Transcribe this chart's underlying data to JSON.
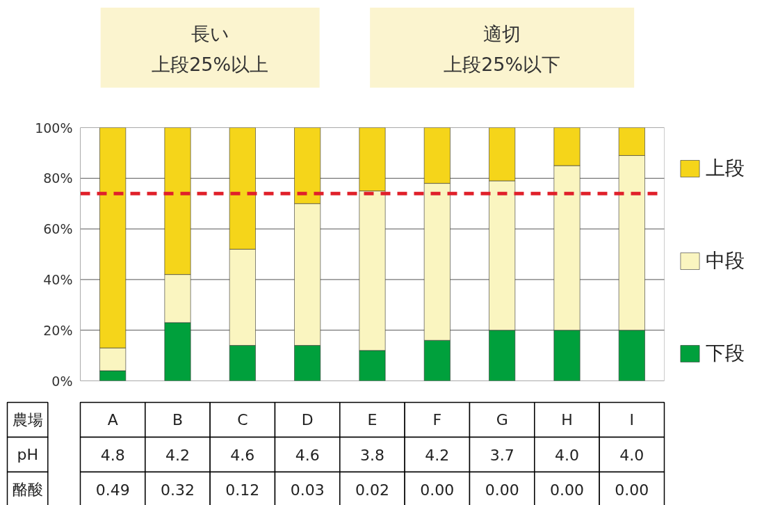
{
  "chart_data": {
    "type": "bar",
    "stacked": true,
    "categories": [
      "A",
      "B",
      "C",
      "D",
      "E",
      "F",
      "G",
      "H",
      "I"
    ],
    "series": [
      {
        "name": "下段",
        "color": "#00a03c",
        "values": [
          4,
          23,
          14,
          14,
          12,
          16,
          20,
          20,
          20
        ]
      },
      {
        "name": "中段",
        "color": "#faf5c0",
        "values": [
          9,
          19,
          38,
          56,
          63,
          62,
          59,
          65,
          69
        ]
      },
      {
        "name": "上段",
        "color": "#f5d51a",
        "values": [
          87,
          58,
          48,
          30,
          25,
          22,
          21,
          15,
          11
        ]
      }
    ],
    "ylim": [
      0,
      100
    ],
    "yticks": [
      {
        "value": 0,
        "label": "0%"
      },
      {
        "value": 20,
        "label": "20%"
      },
      {
        "value": 40,
        "label": "40%"
      },
      {
        "value": 60,
        "label": "60%"
      },
      {
        "value": 80,
        "label": "80%"
      },
      {
        "value": 100,
        "label": "100%"
      }
    ],
    "grid": "y",
    "legend": "right",
    "tick_labels": "y",
    "ref_lines": [
      {
        "axis": "y",
        "value": 74,
        "color": "#e0202a",
        "line_style": "dashed"
      }
    ],
    "annotations": [
      "長い",
      "上段25%以上",
      "適切",
      "上段25%以下",
      "農場",
      "pH",
      "4.8",
      "4.2",
      "4.6",
      "4.6",
      "3.8",
      "4.2",
      "3.7",
      "4.0",
      "4.0",
      "酪酸",
      "0.49",
      "0.32",
      "0.12",
      "0.03",
      "0.02",
      "0.00",
      "0.00",
      "0.00",
      "0.00"
    ]
  }
}
